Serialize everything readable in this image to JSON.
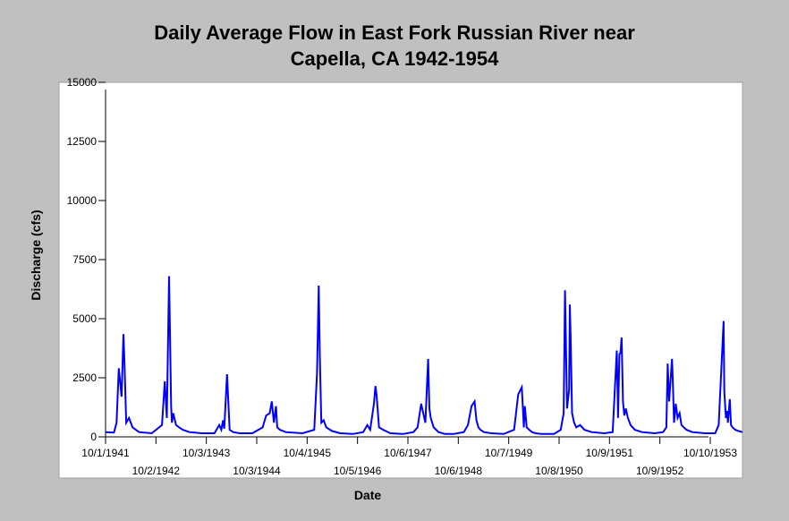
{
  "chart_data": {
    "type": "line",
    "title": "Daily Average Flow in East Fork Russian River near Capella, CA 1942-1954",
    "title_lines": [
      "Daily Average Flow in East Fork Russian River near",
      "Capella, CA 1942-1954"
    ],
    "xlabel": "Date",
    "ylabel": "Discharge (cfs)",
    "ylim": [
      0,
      15000
    ],
    "yticks": [
      0,
      2500,
      5000,
      7500,
      10000,
      12500,
      15000
    ],
    "xlim": [
      "1941-10-01",
      "1954-06-01"
    ],
    "xticks": [
      {
        "date": "1941-10-01",
        "label": "10/1/1941",
        "row": 1
      },
      {
        "date": "1942-10-02",
        "label": "10/2/1942",
        "row": 2
      },
      {
        "date": "1943-10-03",
        "label": "10/3/1943",
        "row": 1
      },
      {
        "date": "1944-10-03",
        "label": "10/3/1944",
        "row": 2
      },
      {
        "date": "1945-10-04",
        "label": "10/4/1945",
        "row": 1
      },
      {
        "date": "1946-10-05",
        "label": "10/5/1946",
        "row": 2
      },
      {
        "date": "1947-10-06",
        "label": "10/6/1947",
        "row": 1
      },
      {
        "date": "1948-10-06",
        "label": "10/6/1948",
        "row": 2
      },
      {
        "date": "1949-10-07",
        "label": "10/7/1949",
        "row": 1
      },
      {
        "date": "1950-10-08",
        "label": "10/8/1950",
        "row": 2
      },
      {
        "date": "1951-10-09",
        "label": "10/9/1951",
        "row": 1
      },
      {
        "date": "1952-10-09",
        "label": "10/9/1952",
        "row": 2
      },
      {
        "date": "1953-10-10",
        "label": "10/10/1953",
        "row": 1
      }
    ],
    "grid": false,
    "line_color": "#0000ff",
    "background_color": "#c0c0c0",
    "plot_background": "#ffffff",
    "series": [
      {
        "x": [
          "1941-10-01",
          "1941-12-01",
          "1941-12-20",
          "1942-01-05",
          "1942-01-25",
          "1942-02-08",
          "1942-02-15",
          "1942-02-28",
          "1942-03-20",
          "1942-04-15",
          "1942-06-01",
          "1942-09-01",
          "1942-11-15",
          "1942-12-05",
          "1942-12-20",
          "1943-01-05",
          "1943-01-20",
          "1943-01-26",
          "1943-02-05",
          "1943-02-25",
          "1943-03-20",
          "1943-04-15",
          "1943-06-01",
          "1943-09-01",
          "1943-12-01",
          "1944-01-05",
          "1944-01-20",
          "1944-02-01",
          "1944-02-10",
          "1944-03-01",
          "1944-03-20",
          "1944-04-15",
          "1944-06-01",
          "1944-09-01",
          "1944-11-15",
          "1944-12-10",
          "1945-01-05",
          "1945-01-20",
          "1945-02-05",
          "1945-02-20",
          "1945-03-01",
          "1945-03-20",
          "1945-05-01",
          "1945-09-01",
          "1945-11-25",
          "1945-12-15",
          "1945-12-27",
          "1946-01-05",
          "1946-01-15",
          "1946-02-01",
          "1946-02-20",
          "1946-04-01",
          "1946-06-01",
          "1946-09-01",
          "1946-11-15",
          "1946-12-15",
          "1947-01-05",
          "1947-02-01",
          "1947-02-12",
          "1947-02-20",
          "1947-03-10",
          "1947-04-10",
          "1947-06-01",
          "1947-09-01",
          "1947-11-15",
          "1947-12-15",
          "1948-01-10",
          "1948-02-10",
          "1948-03-01",
          "1948-03-10",
          "1948-03-20",
          "1948-04-10",
          "1948-05-15",
          "1948-07-01",
          "1948-09-01",
          "1948-11-15",
          "1948-12-15",
          "1949-01-10",
          "1949-02-01",
          "1949-02-15",
          "1949-03-01",
          "1949-03-15",
          "1949-04-10",
          "1949-06-01",
          "1949-09-01",
          "1949-11-15",
          "1949-12-15",
          "1950-01-10",
          "1950-01-25",
          "1950-02-01",
          "1950-02-15",
          "1950-03-05",
          "1950-03-25",
          "1950-04-20",
          "1950-06-01",
          "1950-09-01",
          "1950-10-20",
          "1950-11-10",
          "1950-11-20",
          "1950-12-05",
          "1950-12-20",
          "1950-12-25",
          "1950-12-31",
          "1951-01-10",
          "1951-01-25",
          "1951-02-10",
          "1951-03-10",
          "1951-04-10",
          "1951-06-01",
          "1951-09-01",
          "1951-11-01",
          "1951-12-01",
          "1951-12-10",
          "1951-12-20",
          "1951-12-28",
          "1952-01-05",
          "1952-01-15",
          "1952-01-25",
          "1952-02-05",
          "1952-02-20",
          "1952-03-10",
          "1952-04-10",
          "1952-06-01",
          "1952-09-01",
          "1952-11-01",
          "1952-11-25",
          "1952-12-05",
          "1952-12-15",
          "1953-01-05",
          "1953-01-10",
          "1953-01-20",
          "1953-02-01",
          "1953-02-15",
          "1953-03-01",
          "1953-03-15",
          "1953-04-01",
          "1953-04-20",
          "1953-06-01",
          "1953-09-01",
          "1953-11-15",
          "1953-12-10",
          "1954-01-15",
          "1954-01-20",
          "1954-02-01",
          "1954-02-10",
          "1954-02-15",
          "1954-03-01",
          "1954-03-10",
          "1954-03-20",
          "1954-04-10",
          "1954-05-01",
          "1954-06-01"
        ],
        "y": [
          200,
          180,
          600,
          2900,
          1700,
          4350,
          3200,
          600,
          800,
          400,
          200,
          150,
          500,
          2350,
          800,
          6800,
          1300,
          600,
          1000,
          500,
          400,
          300,
          200,
          150,
          150,
          500,
          300,
          700,
          350,
          2650,
          300,
          200,
          150,
          150,
          400,
          900,
          1000,
          1500,
          600,
          1300,
          400,
          300,
          200,
          150,
          300,
          2700,
          6400,
          3300,
          600,
          700,
          400,
          250,
          150,
          120,
          200,
          500,
          300,
          1400,
          2150,
          1800,
          400,
          300,
          150,
          120,
          200,
          400,
          1400,
          600,
          3300,
          1200,
          800,
          400,
          200,
          120,
          120,
          200,
          500,
          1300,
          1500,
          700,
          400,
          300,
          200,
          150,
          120,
          300,
          1800,
          2100,
          400,
          1300,
          400,
          300,
          200,
          150,
          120,
          120,
          300,
          1000,
          6200,
          1200,
          2000,
          5600,
          4200,
          1000,
          600,
          400,
          500,
          300,
          200,
          150,
          200,
          3650,
          800,
          3500,
          3550,
          4200,
          1500,
          900,
          1200,
          800,
          500,
          300,
          200,
          150,
          200,
          400,
          3100,
          1500,
          3300,
          2500,
          600,
          1400,
          800,
          1000,
          500,
          400,
          300,
          200,
          150,
          150,
          500,
          4900,
          1900,
          800,
          1100,
          600,
          1600,
          500,
          400,
          300,
          250,
          200
        ]
      }
    ]
  }
}
